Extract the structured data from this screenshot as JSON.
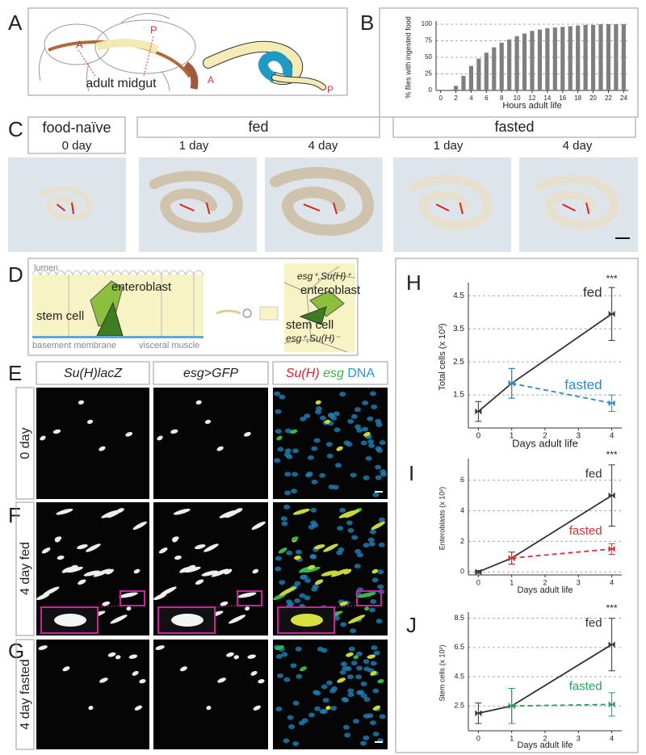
{
  "panel_labels": [
    "A",
    "B",
    "C",
    "D",
    "E",
    "F",
    "G",
    "H",
    "I",
    "J"
  ],
  "panel_a": {
    "labels": [
      "A",
      "P",
      "adult midgut",
      "A",
      "P"
    ]
  },
  "panel_c": {
    "groups": [
      {
        "title": "food-naïve",
        "days": [
          "0 day"
        ]
      },
      {
        "title": "fed",
        "days": [
          "1 day",
          "4 day"
        ]
      },
      {
        "title": "fasted",
        "days": [
          "1 day",
          "4 day"
        ]
      }
    ]
  },
  "panel_d": {
    "left": [
      "lumen",
      "enteroblast",
      "stem cell",
      "basement membrane",
      "visceral muscle"
    ],
    "right": [
      "esg⁺,Su(H)⁺",
      "enteroblast",
      "stem cell",
      "esg⁺,Su(H)⁻"
    ]
  },
  "panel_efg": {
    "columns": [
      "Su(H)lacZ",
      "esg>GFP"
    ],
    "merge": [
      "Su(H)",
      "esg",
      "DNA"
    ],
    "rows": [
      "0 day",
      "4 day fed",
      "4 day fasted"
    ]
  },
  "chart_data": [
    {
      "type": "bar",
      "ylabel": "% flies with ingested food",
      "xlabel": "Hours adult life",
      "x": [
        2,
        3,
        4,
        5,
        6,
        7,
        8,
        9,
        10,
        11,
        12,
        13,
        14,
        15,
        16,
        17,
        18,
        19,
        20,
        21,
        22,
        23,
        24
      ],
      "values": [
        7,
        22,
        37,
        48,
        57,
        65,
        72,
        77,
        82,
        86,
        90,
        92,
        94,
        95,
        96,
        97,
        98,
        99,
        99,
        100,
        100,
        100,
        100
      ],
      "color": "#7f7f7f",
      "xlim": [
        -0.6,
        24.6
      ],
      "xticks": [
        0,
        2,
        4,
        6,
        8,
        10,
        12,
        14,
        16,
        18,
        20,
        22,
        24
      ],
      "ylim": [
        0,
        100
      ],
      "yticks": [
        0,
        25,
        50,
        75,
        100
      ],
      "grid": true
    },
    {
      "type": "line",
      "ylabel": "Total cells  (x 10³)",
      "xlabel": "Days adult life",
      "annotations": [
        "***"
      ],
      "series": [
        {
          "name": "fed",
          "color": "#333333",
          "line_style": "solid",
          "x": [
            0,
            1,
            4
          ],
          "values": [
            1.0,
            1.85,
            3.95
          ],
          "errors": [
            0.3,
            0.45,
            0.8
          ]
        },
        {
          "name": "fasted",
          "color": "#2b8cc4",
          "line_style": "dashed",
          "x": [
            1,
            4
          ],
          "values": [
            1.85,
            1.25
          ],
          "errors": [
            0.45,
            0.25
          ]
        }
      ],
      "xlim": [
        -0.3,
        4.3
      ],
      "xticks": [
        0,
        1,
        2,
        3,
        4
      ],
      "ylim": [
        0.5,
        4.8
      ],
      "yticks": [
        1.5,
        2.5,
        3.5,
        4.5
      ],
      "grid": true
    },
    {
      "type": "line",
      "ylabel": "Enteroblasts  (x 10²)",
      "xlabel": "Days adult life",
      "annotations": [
        "***"
      ],
      "series": [
        {
          "name": "fed",
          "color": "#333333",
          "line_style": "solid",
          "x": [
            0,
            1,
            4
          ],
          "values": [
            0,
            0.9,
            5.0
          ],
          "errors": [
            0.1,
            0.4,
            2.0
          ]
        },
        {
          "name": "fasted",
          "color": "#d93030",
          "line_style": "dashed",
          "x": [
            1,
            4
          ],
          "values": [
            0.9,
            1.5
          ],
          "errors": [
            0.4,
            0.35
          ]
        }
      ],
      "xlim": [
        -0.3,
        4.3
      ],
      "xticks": [
        0,
        1,
        2,
        3,
        4
      ],
      "ylim": [
        -0.2,
        7.2
      ],
      "yticks": [
        0,
        2,
        4,
        6
      ],
      "grid": true
    },
    {
      "type": "line",
      "ylabel": "Stem cells  (x 10²)",
      "xlabel": "Days adult life",
      "annotations": [
        "***"
      ],
      "series": [
        {
          "name": "fed",
          "color": "#333333",
          "line_style": "solid",
          "x": [
            0,
            1,
            4
          ],
          "values": [
            2.0,
            2.5,
            6.7
          ],
          "errors": [
            0.7,
            1.2,
            1.8
          ]
        },
        {
          "name": "fasted",
          "color": "#2a9d5c",
          "line_style": "dashed",
          "x": [
            1,
            4
          ],
          "values": [
            2.5,
            2.6
          ],
          "errors": [
            1.2,
            0.8
          ]
        }
      ],
      "xlim": [
        -0.3,
        4.3
      ],
      "xticks": [
        0,
        1,
        2,
        3,
        4
      ],
      "ylim": [
        0.8,
        8.7
      ],
      "yticks": [
        2.5,
        4.5,
        6.5,
        8.5
      ],
      "grid": true
    }
  ]
}
